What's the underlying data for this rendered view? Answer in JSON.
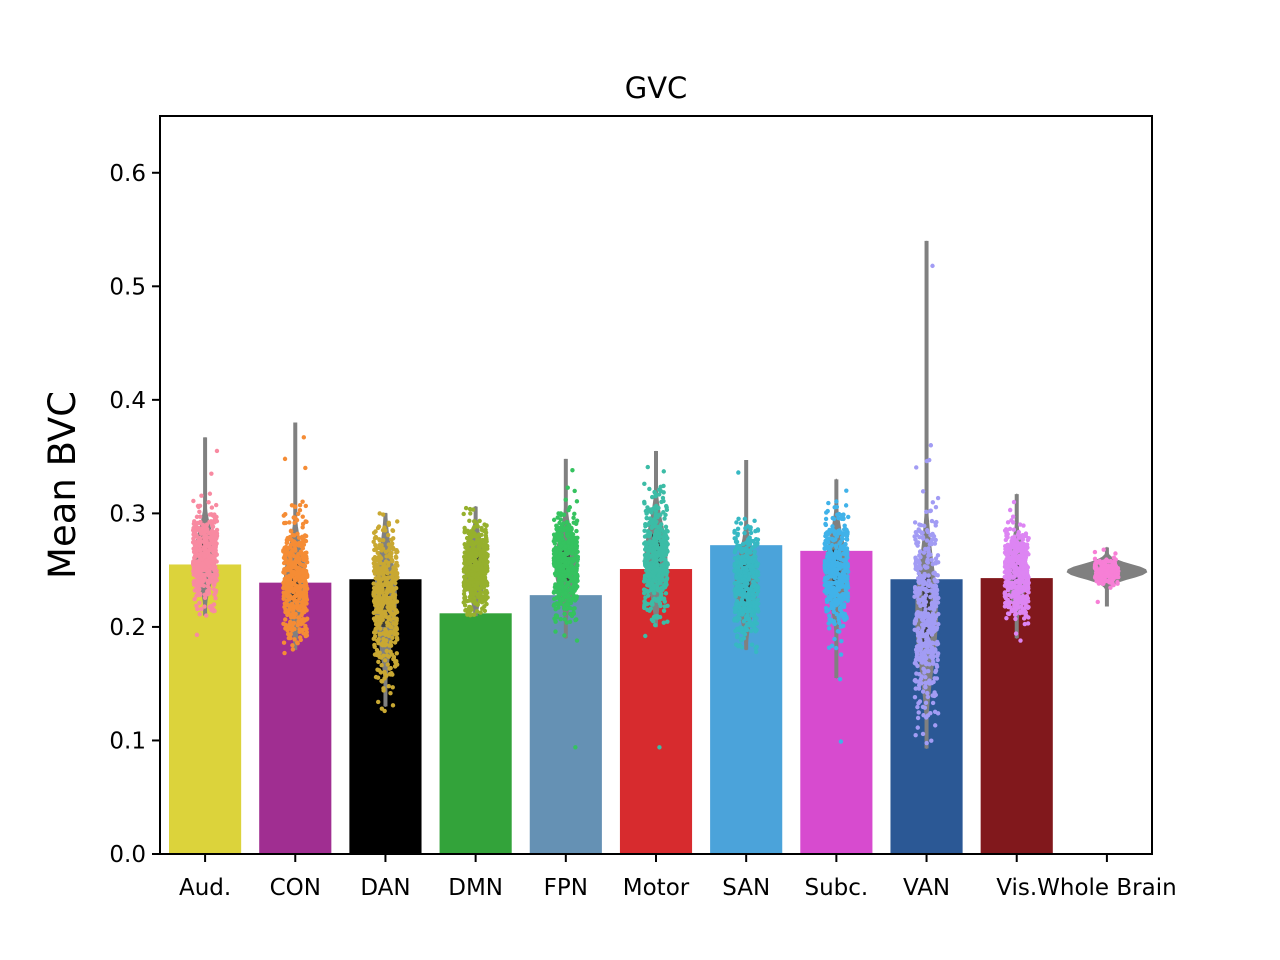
{
  "chart_data": {
    "type": "bar",
    "title": "GVC",
    "xlabel": "",
    "ylabel": "Mean BVC",
    "ylim": [
      0,
      0.65
    ],
    "yticks": [
      "0.0",
      "0.1",
      "0.2",
      "0.3",
      "0.4",
      "0.5",
      "0.6"
    ],
    "grid": false,
    "categories": [
      "Aud.",
      "CON",
      "DAN",
      "DMN",
      "FPN",
      "Motor",
      "SAN",
      "Subc.",
      "VAN",
      "Vis.",
      "Whole Brain"
    ],
    "values": [
      0.255,
      0.239,
      0.242,
      0.212,
      0.228,
      0.251,
      0.272,
      0.267,
      0.242,
      0.243,
      null
    ],
    "bar_colors": [
      "#dcd33b",
      "#a02e91",
      "#000000",
      "#33a33a",
      "#6591b4",
      "#d72b2e",
      "#4ba3da",
      "#d74bcf",
      "#2b5895",
      "#81181c",
      null
    ],
    "point_colors": [
      "#f88aa1",
      "#f58c35",
      "#c9a832",
      "#96b02d",
      "#35c25f",
      "#3cbca6",
      "#37b8c3",
      "#40b2e9",
      "#a29cf4",
      "#dd85f3",
      "#f77fd6"
    ],
    "violin_color": "#808080",
    "distributions": [
      {
        "category": "Aud.",
        "min": 0.21,
        "max": 0.367,
        "median": 0.262,
        "q1": 0.25,
        "q3": 0.278,
        "outliers": [
          0.193,
          0.21,
          0.335,
          0.355
        ]
      },
      {
        "category": "CON",
        "min": 0.18,
        "max": 0.38,
        "median": 0.24,
        "q1": 0.222,
        "q3": 0.258,
        "outliers": [
          0.177,
          0.367,
          0.348,
          0.34
        ]
      },
      {
        "category": "DAN",
        "min": 0.13,
        "max": 0.3,
        "median": 0.225,
        "q1": 0.2,
        "q3": 0.248,
        "outliers": [
          0.126,
          0.128,
          0.29
        ]
      },
      {
        "category": "DMN",
        "min": 0.21,
        "max": 0.306,
        "median": 0.252,
        "q1": 0.238,
        "q3": 0.266,
        "outliers": [
          0.293,
          0.3
        ]
      },
      {
        "category": "FPN",
        "min": 0.19,
        "max": 0.348,
        "median": 0.255,
        "q1": 0.24,
        "q3": 0.272,
        "outliers": [
          0.094,
          0.188,
          0.338
        ]
      },
      {
        "category": "Motor",
        "min": 0.2,
        "max": 0.355,
        "median": 0.262,
        "q1": 0.245,
        "q3": 0.282,
        "outliers": [
          0.094,
          0.192,
          0.337
        ]
      },
      {
        "category": "SAN",
        "min": 0.18,
        "max": 0.347,
        "median": 0.238,
        "q1": 0.222,
        "q3": 0.256,
        "outliers": [
          0.178,
          0.336
        ]
      },
      {
        "category": "Subc.",
        "min": 0.155,
        "max": 0.33,
        "median": 0.25,
        "q1": 0.232,
        "q3": 0.268,
        "outliers": [
          0.099,
          0.154,
          0.32
        ]
      },
      {
        "category": "VAN",
        "min": 0.093,
        "max": 0.54,
        "median": 0.21,
        "q1": 0.185,
        "q3": 0.245,
        "outliers": [
          0.518,
          0.36,
          0.347
        ]
      },
      {
        "category": "Vis.",
        "min": 0.19,
        "max": 0.317,
        "median": 0.248,
        "q1": 0.235,
        "q3": 0.262,
        "outliers": [
          0.188,
          0.31
        ]
      },
      {
        "category": "Whole Brain",
        "min": 0.218,
        "max": 0.27,
        "median": 0.249,
        "q1": 0.245,
        "q3": 0.253,
        "outliers": [
          0.222,
          0.268
        ]
      }
    ]
  }
}
